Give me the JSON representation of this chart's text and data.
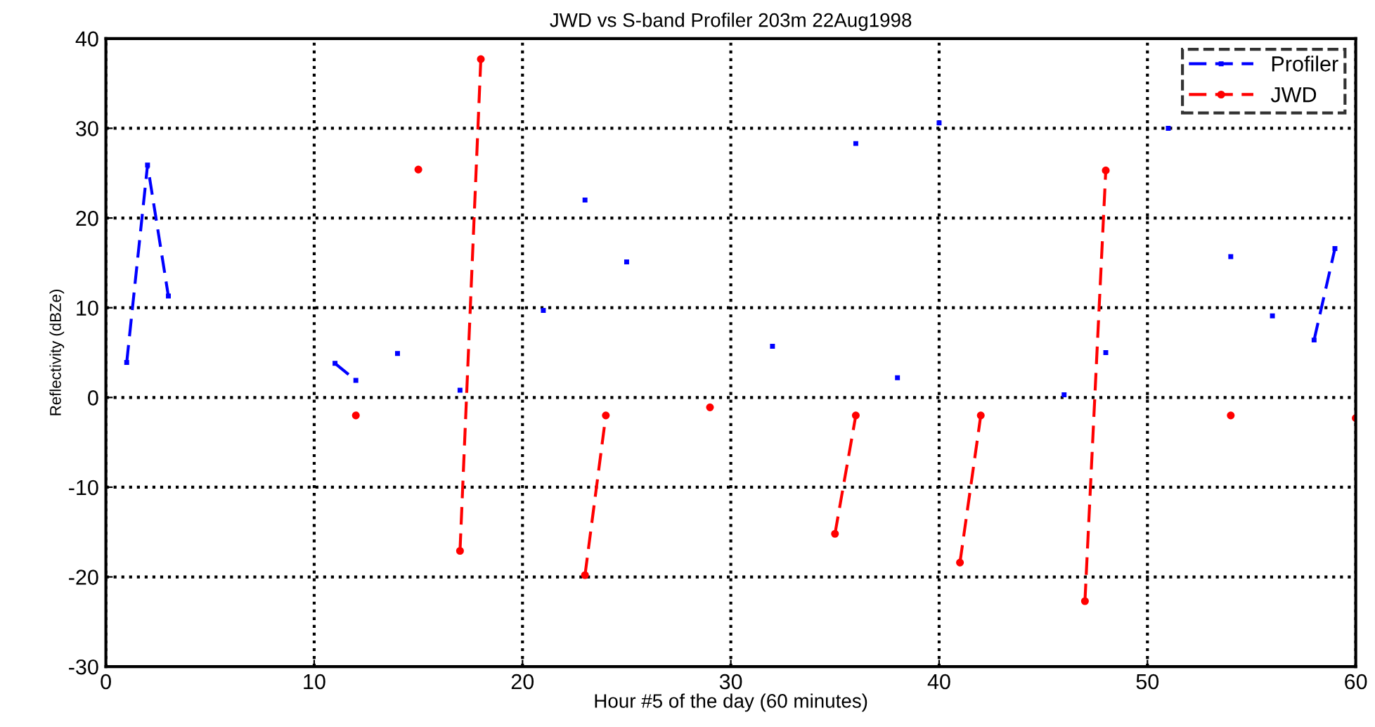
{
  "chart_data": {
    "type": "line",
    "title": "JWD vs S-band Profiler 203m 22Aug1998",
    "xlabel": "Hour #5 of the day (60 minutes)",
    "ylabel": "Reflectivity (dBZe)",
    "xlim": [
      0,
      60
    ],
    "xticks": [
      0,
      10,
      20,
      30,
      40,
      50,
      60
    ],
    "ylim": [
      -30,
      40
    ],
    "yticks": [
      -30,
      -20,
      -10,
      0,
      10,
      20,
      30,
      40
    ],
    "grid": true,
    "legend": "top right",
    "line_style": "dashed",
    "series": [
      {
        "name": "Profiler",
        "color": "#0000ff",
        "marker": "square",
        "x": [
          1,
          2,
          3,
          4,
          11,
          12,
          13,
          14,
          15,
          17,
          18,
          21,
          22,
          23,
          24,
          25,
          26,
          32,
          33,
          36,
          37,
          38,
          39,
          40,
          41,
          46,
          47,
          48,
          49,
          51,
          52,
          54,
          55,
          56,
          57,
          58,
          59
        ],
        "values": [
          3.9,
          25.9,
          11.3,
          null,
          3.8,
          1.9,
          null,
          4.9,
          null,
          0.8,
          null,
          9.7,
          null,
          22.0,
          null,
          15.1,
          null,
          5.7,
          null,
          28.3,
          null,
          2.2,
          null,
          30.6,
          null,
          0.3,
          null,
          5.0,
          null,
          30.0,
          null,
          15.7,
          null,
          9.1,
          null,
          6.4,
          16.6
        ]
      },
      {
        "name": "JWD",
        "color": "#ff0000",
        "marker": "circle",
        "x": [
          12,
          13,
          15,
          16,
          17,
          18,
          19,
          23,
          24,
          25,
          29,
          30,
          35,
          36,
          37,
          41,
          42,
          43,
          47,
          48,
          49,
          54,
          55,
          60
        ],
        "values": [
          -2.0,
          null,
          25.4,
          null,
          -17.1,
          37.7,
          null,
          -19.8,
          -2.0,
          null,
          -1.1,
          null,
          -15.2,
          -2.0,
          null,
          -18.4,
          -2.0,
          null,
          -22.7,
          25.3,
          null,
          -2.0,
          null,
          -2.3
        ]
      }
    ]
  }
}
